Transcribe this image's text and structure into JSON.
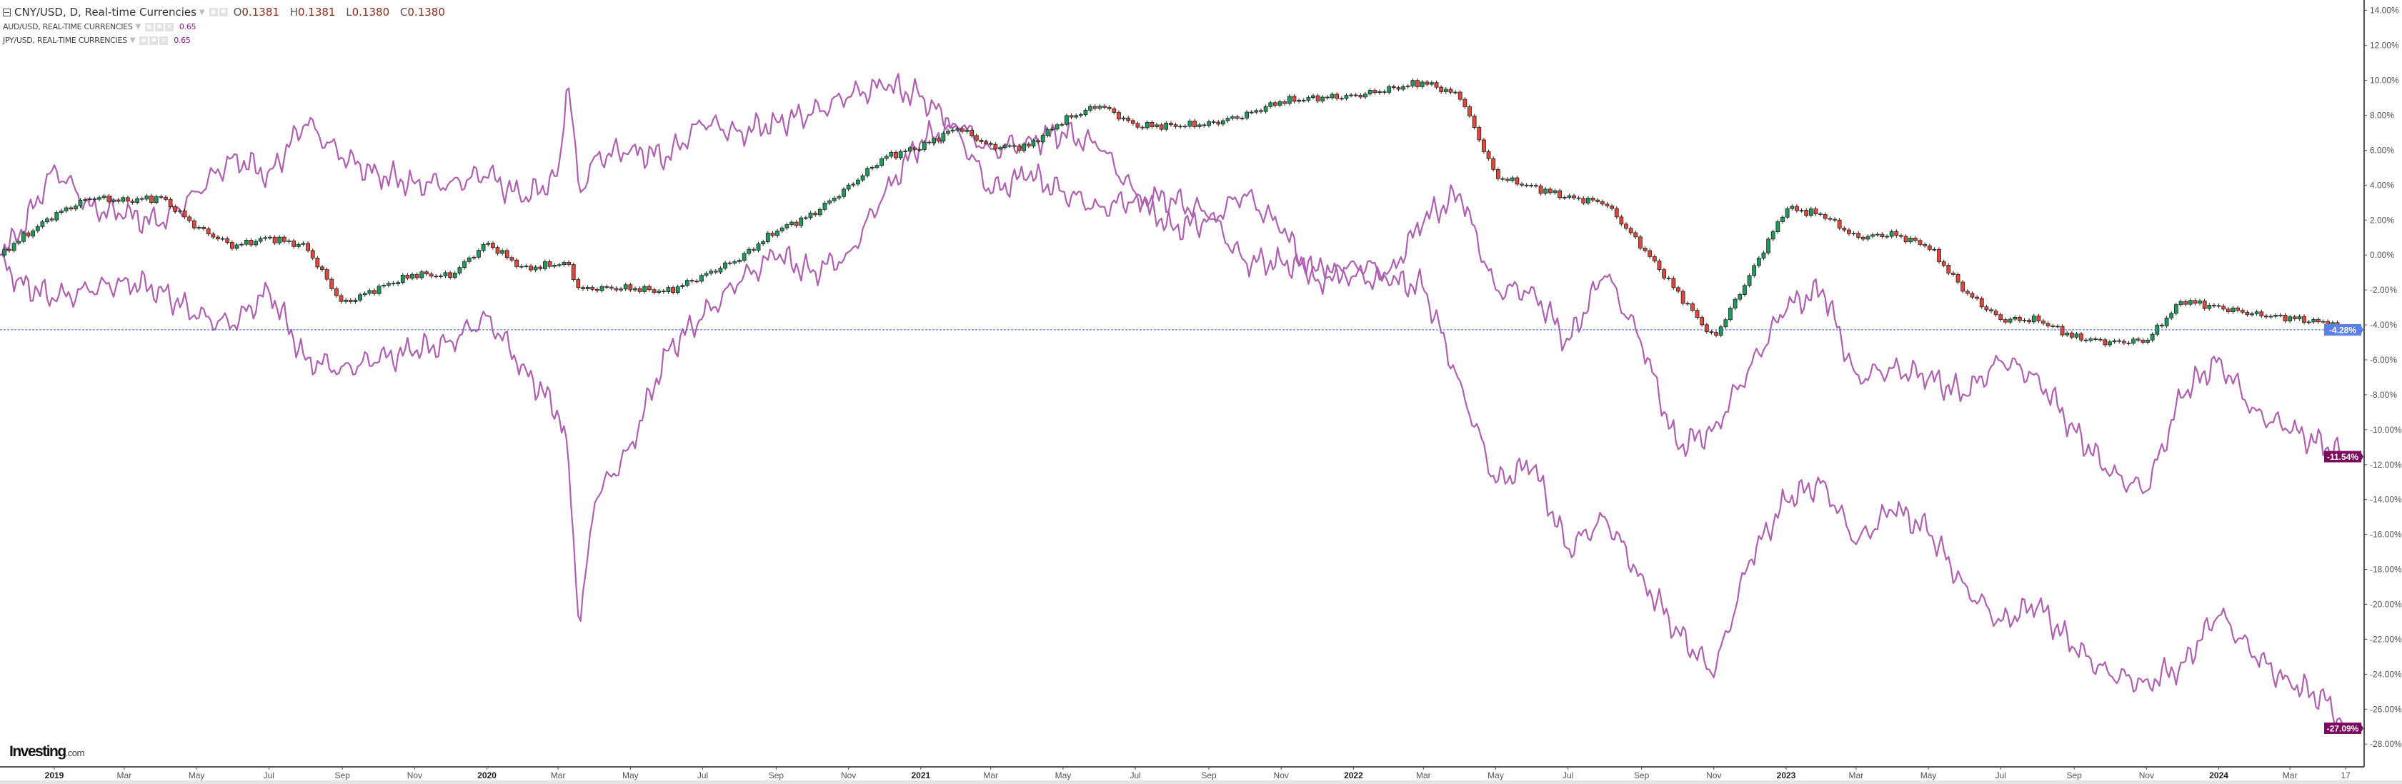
{
  "legend": {
    "main": {
      "title": "CNY/USD, D, Real-time Currencies",
      "o_label": "O",
      "o": "0.1381",
      "h_label": "H",
      "h": "0.1381",
      "l_label": "L",
      "l": "0.1380",
      "c_label": "C",
      "c": "0.1380"
    },
    "aud": {
      "title": "AUD/USD, REAL-TIME CURRENCIES",
      "value": "0.65"
    },
    "jpy": {
      "title": "JPY/USD, REAL-TIME CURRENCIES",
      "value": "0.65"
    }
  },
  "logo": {
    "text": "Investing",
    "suffix": ".com"
  },
  "colors": {
    "up": "#1e9a5c",
    "down": "#e5483a",
    "line": "#b060b0",
    "last_line": "#4169e1",
    "badge_cny": "#5a7fe6",
    "badge_other": "#7d0a5f",
    "axis": "#555555"
  },
  "chart_data": {
    "type": "candlestick+line",
    "scale": "percent",
    "ylim": [
      -29.3,
      14.6
    ],
    "grid": false,
    "y_ticks": [
      14,
      12,
      10,
      8,
      6,
      4,
      2,
      0,
      -2,
      -4,
      -6,
      -8,
      -10,
      -12,
      -14,
      -16,
      -18,
      -20,
      -22,
      -24,
      -26,
      -28
    ],
    "y_tick_labels": [
      "14.00%",
      "12.00%",
      "10.00%",
      "8.00%",
      "6.00%",
      "4.00%",
      "2.00%",
      "0.00%",
      "-2.00%",
      "-4.00%",
      "-6.00%",
      "-8.00%",
      "-10.00%",
      "-12.00%",
      "-14.00%",
      "-16.00%",
      "-18.00%",
      "-20.00%",
      "-22.00%",
      "-24.00%",
      "-26.00%",
      "-28.00%"
    ],
    "x_ticks": [
      {
        "label": "2019",
        "date": "2019-01-01",
        "year": true
      },
      {
        "label": "Mar",
        "date": "2019-03-01"
      },
      {
        "label": "May",
        "date": "2019-05-01"
      },
      {
        "label": "Jul",
        "date": "2019-07-01"
      },
      {
        "label": "Sep",
        "date": "2019-09-01"
      },
      {
        "label": "Nov",
        "date": "2019-11-01"
      },
      {
        "label": "2020",
        "date": "2020-01-01",
        "year": true
      },
      {
        "label": "Mar",
        "date": "2020-03-01"
      },
      {
        "label": "May",
        "date": "2020-05-01"
      },
      {
        "label": "Jul",
        "date": "2020-07-01"
      },
      {
        "label": "Sep",
        "date": "2020-09-01"
      },
      {
        "label": "Nov",
        "date": "2020-11-01"
      },
      {
        "label": "2021",
        "date": "2021-01-01",
        "year": true
      },
      {
        "label": "Mar",
        "date": "2021-03-01"
      },
      {
        "label": "May",
        "date": "2021-05-01"
      },
      {
        "label": "Jul",
        "date": "2021-07-01"
      },
      {
        "label": "Sep",
        "date": "2021-09-01"
      },
      {
        "label": "Nov",
        "date": "2021-11-01"
      },
      {
        "label": "2022",
        "date": "2022-01-01",
        "year": true
      },
      {
        "label": "Mar",
        "date": "2022-03-01"
      },
      {
        "label": "May",
        "date": "2022-05-01"
      },
      {
        "label": "Jul",
        "date": "2022-07-01"
      },
      {
        "label": "Sep",
        "date": "2022-09-01"
      },
      {
        "label": "Nov",
        "date": "2022-11-01"
      },
      {
        "label": "2023",
        "date": "2023-01-01",
        "year": true
      },
      {
        "label": "Mar",
        "date": "2023-03-01"
      },
      {
        "label": "May",
        "date": "2023-05-01"
      },
      {
        "label": "Jul",
        "date": "2023-07-01"
      },
      {
        "label": "Sep",
        "date": "2023-09-01"
      },
      {
        "label": "Nov",
        "date": "2023-11-01"
      },
      {
        "label": "2024",
        "date": "2024-01-01",
        "year": true
      },
      {
        "label": "Mar",
        "date": "2024-03-01"
      },
      {
        "label": "17",
        "date": "2024-04-17"
      }
    ],
    "x": [
      "2018-11-16",
      "2018-12-01",
      "2019-01-01",
      "2019-02-01",
      "2019-03-01",
      "2019-04-01",
      "2019-05-01",
      "2019-06-01",
      "2019-07-01",
      "2019-08-01",
      "2019-09-01",
      "2019-10-01",
      "2019-11-01",
      "2019-12-01",
      "2020-01-01",
      "2020-02-01",
      "2020-03-01",
      "2020-03-09",
      "2020-03-19",
      "2020-04-01",
      "2020-05-01",
      "2020-06-01",
      "2020-07-01",
      "2020-08-01",
      "2020-09-01",
      "2020-10-01",
      "2020-11-01",
      "2020-12-01",
      "2021-01-01",
      "2021-02-01",
      "2021-03-01",
      "2021-04-01",
      "2021-05-01",
      "2021-06-01",
      "2021-07-01",
      "2021-08-01",
      "2021-09-01",
      "2021-10-01",
      "2021-11-01",
      "2021-12-01",
      "2022-01-01",
      "2022-02-01",
      "2022-03-01",
      "2022-04-01",
      "2022-05-01",
      "2022-06-01",
      "2022-07-01",
      "2022-08-01",
      "2022-09-01",
      "2022-10-01",
      "2022-11-01",
      "2022-12-01",
      "2023-01-01",
      "2023-02-01",
      "2023-03-01",
      "2023-04-01",
      "2023-05-01",
      "2023-06-01",
      "2023-07-01",
      "2023-08-01",
      "2023-09-01",
      "2023-10-01",
      "2023-11-01",
      "2023-12-01",
      "2024-01-01",
      "2024-02-01",
      "2024-03-01",
      "2024-04-01",
      "2024-04-17"
    ],
    "series": [
      {
        "name": "CNY/USD",
        "style": "candlestick",
        "last_label": "-4.28%",
        "values": [
          0,
          0.8,
          2.3,
          3.3,
          3.1,
          3.3,
          1.6,
          0.5,
          1.0,
          0.5,
          -2.8,
          -1.9,
          -1.1,
          -1.2,
          0.7,
          -0.8,
          -0.5,
          -0.5,
          -2.0,
          -1.9,
          -1.9,
          -2.1,
          -1.2,
          -0.2,
          1.4,
          2.3,
          3.9,
          5.6,
          6.2,
          7.3,
          6.2,
          6.2,
          7.7,
          8.6,
          7.4,
          7.4,
          7.5,
          8.0,
          8.8,
          9.0,
          9.1,
          9.5,
          9.9,
          9.1,
          4.5,
          3.9,
          3.3,
          3.0,
          0.5,
          -2.1,
          -4.8,
          -1.2,
          2.7,
          2.3,
          1.0,
          1.2,
          0.5,
          -2.1,
          -3.7,
          -3.7,
          -4.7,
          -5.0,
          -4.9,
          -2.6,
          -3.0,
          -3.4,
          -3.6,
          -3.9,
          -4.28
        ]
      },
      {
        "name": "AUD/USD",
        "style": "line",
        "last_label": "-11.54%",
        "values": [
          0,
          -1.5,
          -2.5,
          -2,
          -1.5,
          -2,
          -3.5,
          -4,
          -2,
          -6,
          -6.5,
          -6,
          -5.5,
          -5,
          -3.5,
          -6.5,
          -9,
          -11,
          -21.5,
          -14,
          -11,
          -5.5,
          -3.5,
          -1.5,
          0,
          -1,
          0,
          3.5,
          6.5,
          7.5,
          6,
          6.5,
          7,
          6.2,
          3.5,
          1.5,
          2,
          3.5,
          1.5,
          -1.5,
          -0.5,
          -1,
          2,
          3.5,
          -2,
          -2,
          -5,
          -1,
          -5,
          -11,
          -10,
          -6.5,
          -3,
          -2,
          -7,
          -6.5,
          -7,
          -8,
          -6,
          -7,
          -10,
          -12.5,
          -13.5,
          -8,
          -6,
          -9,
          -10,
          -11,
          -11.54
        ]
      },
      {
        "name": "JPY/USD",
        "style": "line",
        "last_label": "-27.09%",
        "values": [
          0,
          1.0,
          5.0,
          2.7,
          2.3,
          1.8,
          3.6,
          5.6,
          4.6,
          7.6,
          5.6,
          4.6,
          4.1,
          4.1,
          4.6,
          3.2,
          4.5,
          10.2,
          3.5,
          5.6,
          6.0,
          5.6,
          7.6,
          7.0,
          7.6,
          8.1,
          9.1,
          9.7,
          9.1,
          7.1,
          3.6,
          4.6,
          3.6,
          2.7,
          3.2,
          3.2,
          2.3,
          -0.4,
          -0.4,
          -0.9,
          -1.2,
          -1.5,
          -1.8,
          -7.4,
          -13.0,
          -12.0,
          -16.9,
          -15.0,
          -18.5,
          -21.5,
          -24.0,
          -17.5,
          -14.0,
          -13.0,
          -16.5,
          -14.5,
          -15.8,
          -19.0,
          -21.0,
          -20.0,
          -22.5,
          -24.0,
          -24.5,
          -23.5,
          -20.5,
          -23.0,
          -24.5,
          -25.5,
          -27.09
        ]
      }
    ]
  }
}
